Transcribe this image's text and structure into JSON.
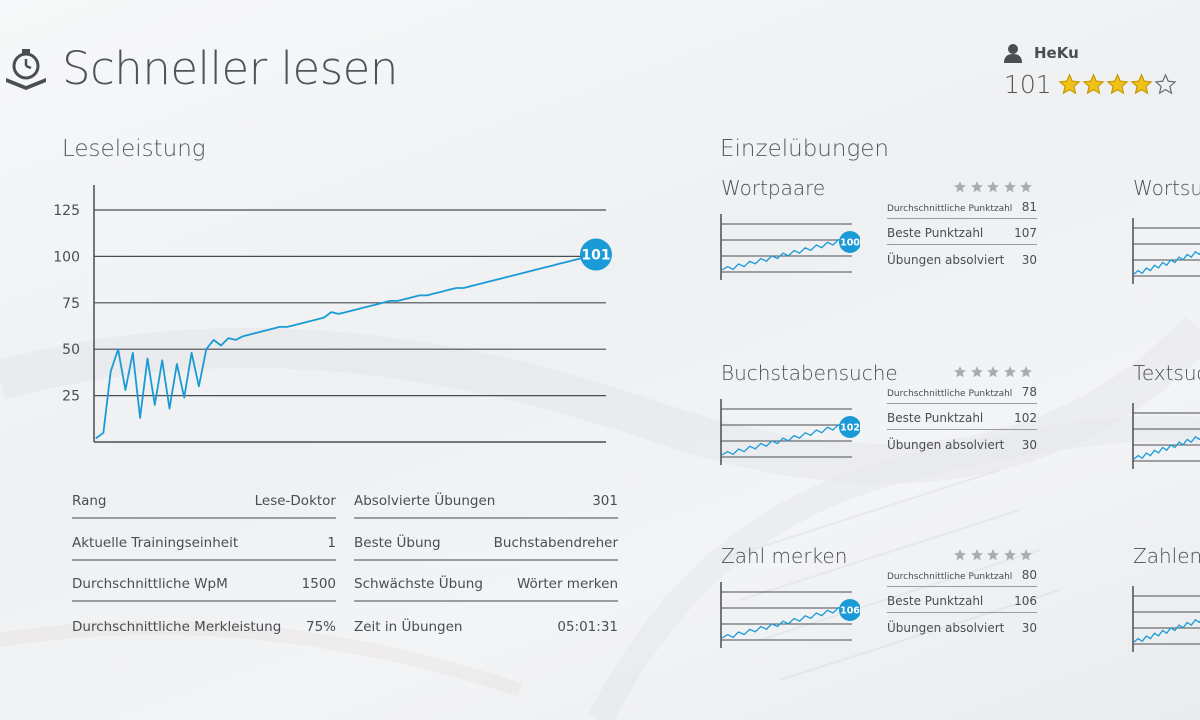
{
  "app": {
    "title": "Schneller lesen",
    "icon": "stopwatch-book-icon"
  },
  "user": {
    "name": "HeKu",
    "score": "101",
    "rating": 4,
    "rating_max": 5,
    "star_color": "#f2c21b"
  },
  "colors": {
    "accent": "#1a9bd7",
    "text": "#4a4d52"
  },
  "leseleistung": {
    "title": "Leseleistung",
    "current_badge": "101"
  },
  "chart_data": {
    "type": "line",
    "title": "Leseleistung",
    "xlabel": "",
    "ylabel": "",
    "ylim": [
      0,
      125
    ],
    "yticks": [
      25,
      50,
      75,
      100,
      125
    ],
    "grid": true,
    "series": [
      {
        "values": [
          2,
          5,
          38,
          50,
          28,
          48,
          13,
          45,
          20,
          44,
          18,
          42,
          24,
          48,
          30,
          50,
          55,
          52,
          56,
          55,
          57,
          58,
          59,
          60,
          61,
          62,
          62,
          63,
          64,
          65,
          66,
          67,
          70,
          69,
          70,
          71,
          72,
          73,
          74,
          75,
          76,
          76,
          77,
          78,
          79,
          79,
          80,
          81,
          82,
          83,
          83,
          84,
          85,
          86,
          87,
          88,
          89,
          90,
          91,
          92,
          93,
          94,
          95,
          96,
          97,
          98,
          99,
          100,
          101
        ]
      }
    ]
  },
  "stats_left": [
    {
      "label": "Rang",
      "value": "Lese-Doktor"
    },
    {
      "label": "Aktuelle Trainingseinheit",
      "value": "1"
    },
    {
      "label": "Durchschnittliche WpM",
      "value": "1500"
    },
    {
      "label": "Durchschnittliche Merkleistung",
      "value": "75%"
    }
  ],
  "stats_right": [
    {
      "label": "Absolvierte Übungen",
      "value": "301"
    },
    {
      "label": "Beste Übung",
      "value": "Buchstabendreher"
    },
    {
      "label": "Schwächste Übung",
      "value": "Wörter merken"
    },
    {
      "label": "Zeit in Übungen",
      "value": "05:01:31"
    }
  ],
  "einzeluebungen": {
    "title": "Einzelübungen",
    "labels": {
      "avg": "Durchschnittliche Punktzahl",
      "best": "Beste Punktzahl",
      "count": "Übungen absolviert"
    },
    "exercises": [
      {
        "name": "Wortpaare",
        "badge": "100",
        "avg": "81",
        "best": "107",
        "count": "30"
      },
      {
        "name": "Buchstabensuche",
        "badge": "102",
        "avg": "78",
        "best": "102",
        "count": "30"
      },
      {
        "name": "Zahl merken",
        "badge": "106",
        "avg": "80",
        "best": "106",
        "count": "30"
      }
    ],
    "cut_off": [
      {
        "name": "Wortsu"
      },
      {
        "name": "Textsuc"
      },
      {
        "name": "Zahlens"
      }
    ]
  }
}
